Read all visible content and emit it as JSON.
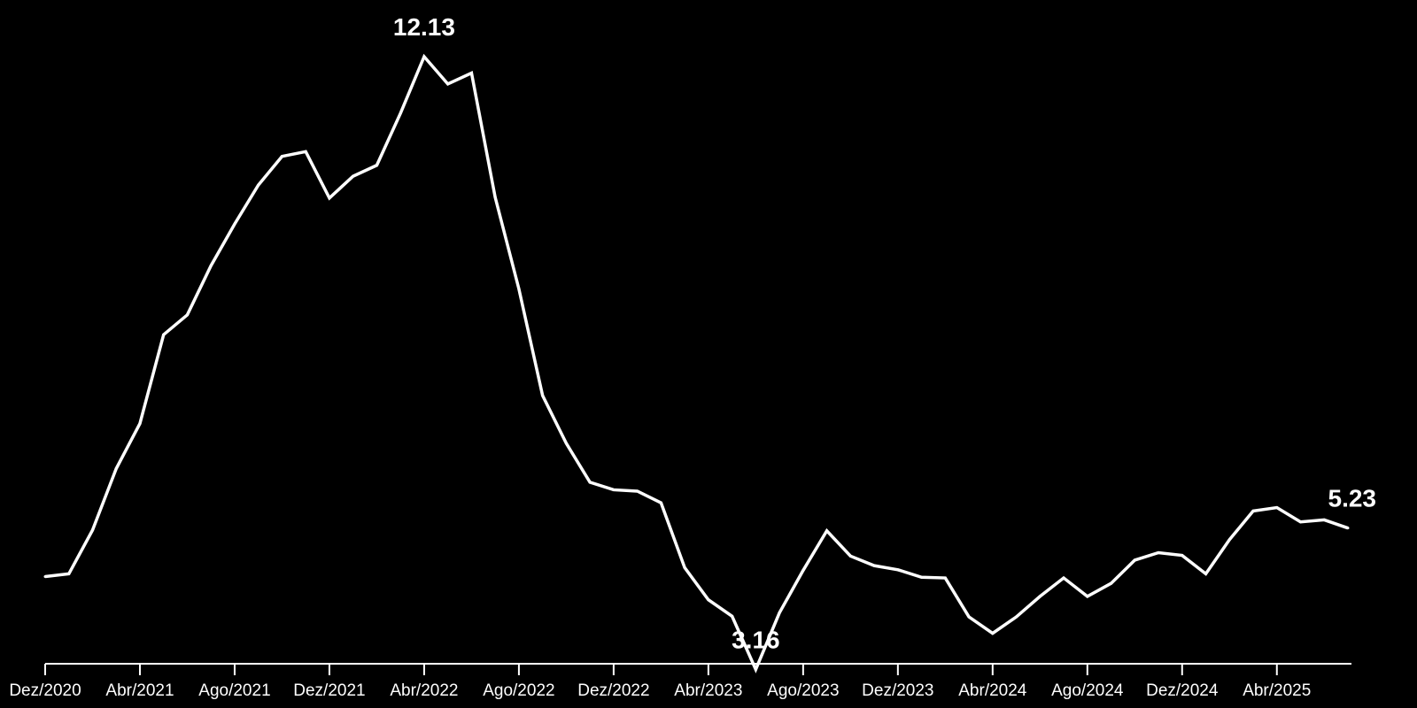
{
  "chart_data": {
    "type": "line",
    "title": "",
    "xlabel": "",
    "ylabel": "",
    "ylim": [
      2.5,
      13.0
    ],
    "grid": false,
    "legend": "none",
    "colors": {
      "background": "#000000",
      "line": "#ffffff",
      "text": "#ffffff"
    },
    "x_ticks": [
      "Dez/2020",
      "Abr/2021",
      "Ago/2021",
      "Dez/2021",
      "Abr/2022",
      "Ago/2022",
      "Dez/2022",
      "Abr/2023",
      "Ago/2023",
      "Dez/2023",
      "Abr/2024",
      "Ago/2024",
      "Dez/2024",
      "Abr/2025"
    ],
    "x": [
      "Dez/2020",
      "Jan/2021",
      "Fev/2021",
      "Mar/2021",
      "Abr/2021",
      "Mai/2021",
      "Jun/2021",
      "Jul/2021",
      "Ago/2021",
      "Set/2021",
      "Out/2021",
      "Nov/2021",
      "Dez/2021",
      "Jan/2022",
      "Fev/2022",
      "Mar/2022",
      "Abr/2022",
      "Mai/2022",
      "Jun/2022",
      "Jul/2022",
      "Ago/2022",
      "Set/2022",
      "Out/2022",
      "Nov/2022",
      "Dez/2022",
      "Jan/2023",
      "Fev/2023",
      "Mar/2023",
      "Abr/2023",
      "Mai/2023",
      "Jun/2023",
      "Jul/2023",
      "Ago/2023",
      "Set/2023",
      "Out/2023",
      "Nov/2023",
      "Dez/2023",
      "Jan/2024",
      "Fev/2024",
      "Mar/2024",
      "Abr/2024",
      "Mai/2024",
      "Jun/2024",
      "Jul/2024",
      "Ago/2024",
      "Set/2024",
      "Out/2024",
      "Nov/2024",
      "Dez/2024",
      "Jan/2025",
      "Fev/2025",
      "Mar/2025",
      "Abr/2025",
      "Mai/2025",
      "Jun/2025",
      "Jul/2025"
    ],
    "series": [
      {
        "values": [
          4.52,
          4.56,
          5.2,
          6.1,
          6.76,
          8.06,
          8.35,
          9.07,
          9.68,
          10.25,
          10.67,
          10.74,
          10.06,
          10.38,
          10.54,
          11.3,
          12.13,
          11.73,
          11.89,
          10.07,
          8.73,
          7.17,
          6.47,
          5.9,
          5.79,
          5.77,
          5.6,
          4.65,
          4.18,
          3.94,
          3.16,
          3.99,
          4.61,
          5.19,
          4.82,
          4.68,
          4.62,
          4.51,
          4.5,
          3.93,
          3.69,
          3.93,
          4.23,
          4.5,
          4.23,
          4.42,
          4.76,
          4.87,
          4.83,
          4.56,
          5.06,
          5.48,
          5.53,
          5.32,
          5.35,
          5.23
        ]
      }
    ],
    "annotations": [
      {
        "label": "12.13",
        "x": "Abr/2022",
        "y": 12.13,
        "placement": "above"
      },
      {
        "label": "3.16",
        "x": "Jun/2023",
        "y": 3.16,
        "placement": "above"
      },
      {
        "label": "5.23",
        "x": "Jul/2025",
        "y": 5.23,
        "placement": "above"
      }
    ]
  }
}
